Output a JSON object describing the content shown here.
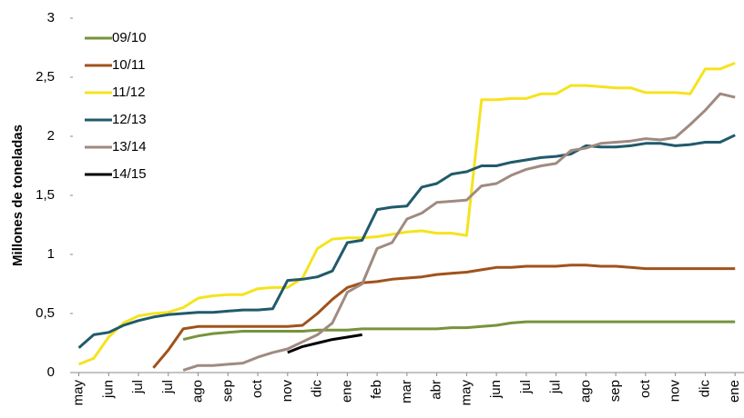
{
  "chart_data": {
    "type": "line",
    "y_label": "Millones de toneladas",
    "x": [
      0,
      0.5,
      1,
      1.5,
      2,
      2.5,
      3,
      3.5,
      4,
      4.5,
      5,
      5.5,
      6,
      6.5,
      7,
      7.5,
      8,
      8.5,
      9,
      9.5,
      10,
      10.5,
      11,
      11.5,
      12,
      12.5,
      13,
      13.5,
      14,
      14.5,
      15,
      15.5,
      16,
      16.5,
      17,
      17.5,
      18,
      18.5,
      19,
      19.5,
      20,
      20.5,
      21,
      21.5,
      22
    ],
    "xlim": [
      -0.2,
      22.3
    ],
    "xticks": [
      {
        "value": 0,
        "label": "may"
      },
      {
        "value": 1,
        "label": "jun"
      },
      {
        "value": 2,
        "label": "jul"
      },
      {
        "value": 3,
        "label": "jul"
      },
      {
        "value": 4,
        "label": "ago"
      },
      {
        "value": 5,
        "label": "sep"
      },
      {
        "value": 6,
        "label": "oct"
      },
      {
        "value": 7,
        "label": "nov"
      },
      {
        "value": 8,
        "label": "dic"
      },
      {
        "value": 9,
        "label": "ene"
      },
      {
        "value": 10,
        "label": "feb"
      },
      {
        "value": 11,
        "label": "mar"
      },
      {
        "value": 12,
        "label": "abr"
      },
      {
        "value": 13,
        "label": "may"
      },
      {
        "value": 14,
        "label": "jun"
      },
      {
        "value": 15,
        "label": "jul"
      },
      {
        "value": 16,
        "label": "jul"
      },
      {
        "value": 17,
        "label": "ago"
      },
      {
        "value": 18,
        "label": "sep"
      },
      {
        "value": 19,
        "label": "oct"
      },
      {
        "value": 20,
        "label": "nov"
      },
      {
        "value": 21,
        "label": "dic"
      },
      {
        "value": 22,
        "label": "ene"
      }
    ],
    "ylim": [
      0,
      3
    ],
    "yticks": [
      0,
      {
        "value": 0.5,
        "label": "0,5"
      },
      1,
      {
        "value": 1.5,
        "label": "1,5"
      },
      2,
      {
        "value": 2.5,
        "label": "2,5"
      },
      3
    ],
    "grid": false,
    "legend": "top-left",
    "series": [
      {
        "name": "09/10",
        "color": "#77933c",
        "values": [
          null,
          null,
          null,
          null,
          null,
          null,
          null,
          0.28,
          0.31,
          0.33,
          0.34,
          0.35,
          0.35,
          0.35,
          0.35,
          0.35,
          0.36,
          0.36,
          0.36,
          0.37,
          0.37,
          0.37,
          0.37,
          0.37,
          0.37,
          0.38,
          0.38,
          0.39,
          0.4,
          0.42,
          0.43,
          0.43,
          0.43,
          0.43,
          0.43,
          0.43,
          0.43,
          0.43,
          0.43,
          0.43,
          0.43,
          0.43,
          0.43,
          0.43,
          0.43
        ]
      },
      {
        "name": "10/11",
        "color": "#a0521b",
        "values": [
          null,
          null,
          null,
          null,
          null,
          0.04,
          0.19,
          0.37,
          0.39,
          0.39,
          0.39,
          0.39,
          0.39,
          0.39,
          0.39,
          0.4,
          0.5,
          0.62,
          0.72,
          0.76,
          0.77,
          0.79,
          0.8,
          0.81,
          0.83,
          0.84,
          0.85,
          0.87,
          0.89,
          0.89,
          0.9,
          0.9,
          0.9,
          0.91,
          0.91,
          0.9,
          0.9,
          0.89,
          0.88,
          0.88,
          0.88,
          0.88,
          0.88,
          0.88,
          0.88
        ]
      },
      {
        "name": "11/12",
        "color": "#f5e31e",
        "values": [
          0.07,
          0.12,
          0.3,
          0.42,
          0.48,
          0.5,
          0.51,
          0.55,
          0.63,
          0.65,
          0.66,
          0.66,
          0.71,
          0.72,
          0.72,
          0.8,
          1.05,
          1.13,
          1.14,
          1.14,
          1.15,
          1.17,
          1.19,
          1.2,
          1.18,
          1.18,
          1.16,
          2.31,
          2.31,
          2.32,
          2.32,
          2.36,
          2.36,
          2.43,
          2.43,
          2.42,
          2.41,
          2.41,
          2.37,
          2.37,
          2.37,
          2.36,
          2.57,
          2.57,
          2.62
        ]
      },
      {
        "name": "12/13",
        "color": "#215a6b",
        "values": [
          0.21,
          0.32,
          0.34,
          0.4,
          0.44,
          0.47,
          0.49,
          0.5,
          0.51,
          0.51,
          0.52,
          0.53,
          0.53,
          0.54,
          0.78,
          0.79,
          0.81,
          0.86,
          1.1,
          1.12,
          1.38,
          1.4,
          1.41,
          1.57,
          1.6,
          1.68,
          1.7,
          1.75,
          1.75,
          1.78,
          1.8,
          1.82,
          1.83,
          1.85,
          1.92,
          1.91,
          1.91,
          1.92,
          1.94,
          1.94,
          1.92,
          1.93,
          1.95,
          1.95,
          2.01
        ]
      },
      {
        "name": "13/14",
        "color": "#a08a80",
        "values": [
          null,
          null,
          null,
          null,
          null,
          null,
          null,
          0.02,
          0.06,
          0.06,
          0.07,
          0.08,
          0.13,
          0.17,
          0.2,
          0.26,
          0.32,
          0.42,
          0.68,
          0.75,
          1.05,
          1.1,
          1.3,
          1.35,
          1.44,
          1.45,
          1.46,
          1.58,
          1.6,
          1.67,
          1.72,
          1.75,
          1.77,
          1.88,
          1.9,
          1.94,
          1.95,
          1.96,
          1.98,
          1.97,
          1.99,
          2.1,
          2.22,
          2.36,
          2.33
        ]
      },
      {
        "name": "14/15",
        "color": "#000000",
        "values": [
          null,
          null,
          null,
          null,
          null,
          null,
          null,
          null,
          null,
          null,
          null,
          null,
          null,
          null,
          0.17,
          0.22,
          0.25,
          0.28,
          0.3,
          0.32,
          null,
          null,
          null,
          null,
          null,
          null,
          null,
          null,
          null,
          null,
          null,
          null,
          null,
          null,
          null,
          null,
          null,
          null,
          null,
          null,
          null,
          null,
          null,
          null,
          null
        ]
      }
    ]
  }
}
